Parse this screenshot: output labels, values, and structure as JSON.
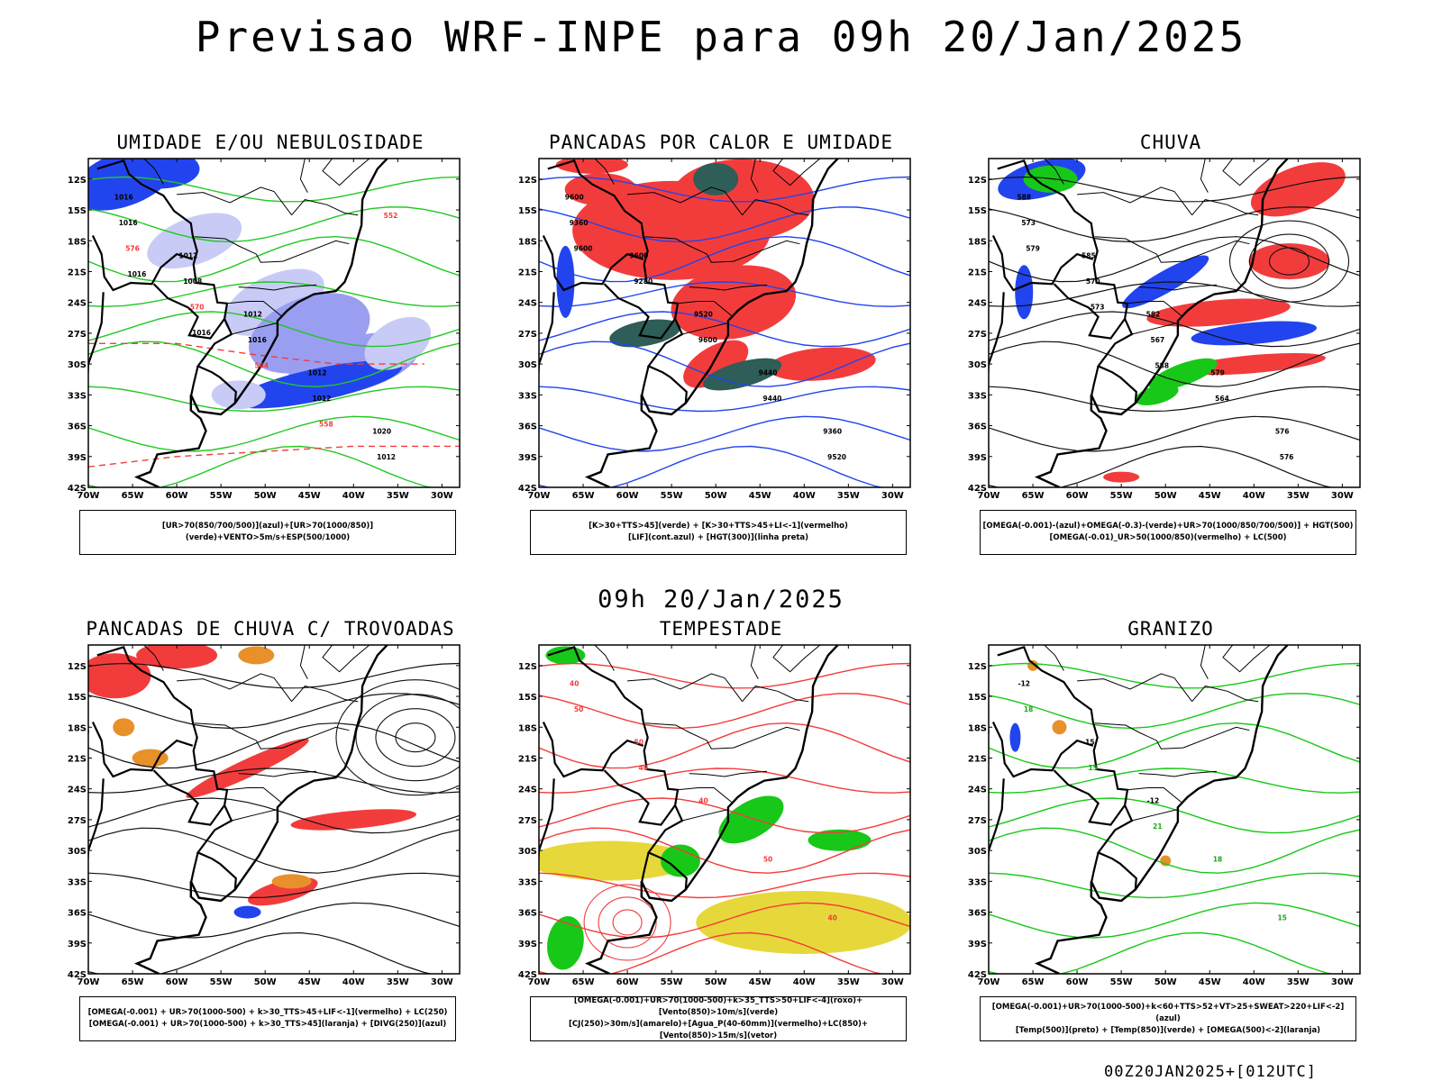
{
  "header": {
    "title": "Previsao WRF-INPE  para 09h 20/Jan/2025",
    "mid_date": "09h 20/Jan/2025",
    "footer_stamp": "00Z20JAN2025+[012UTC]"
  },
  "axes": {
    "lat_labels": [
      "12S",
      "15S",
      "18S",
      "21S",
      "24S",
      "27S",
      "30S",
      "33S",
      "36S",
      "39S",
      "42S"
    ],
    "lon_labels": [
      "70W",
      "65W",
      "60W",
      "55W",
      "50W",
      "45W",
      "40W",
      "35W",
      "30W"
    ]
  },
  "colors": {
    "blue": "#2244ee",
    "light_blue": "#9a9ef0",
    "pale_blue": "#c8cbf5",
    "green": "#18c818",
    "red": "#f23c3c",
    "orange": "#e8902a",
    "yellow": "#e6d83a",
    "dark_teal": "#2f5d58"
  },
  "panels": [
    {
      "id": "umidade",
      "title": "UMIDADE E/OU NEBULOSIDADE",
      "legend": [
        "[UR>70(850/700/500)](azul)+[UR>70(1000/850)](verde)+VENTO>5m/s+ESP(500/1000)"
      ],
      "contour_labels": [
        "1016",
        "1012",
        "1012",
        "1012",
        "1020",
        "1016",
        "1008",
        "1016",
        "1012",
        "1012",
        "576",
        "570",
        "564",
        "558",
        "552",
        "1016",
        "1016"
      ]
    },
    {
      "id": "pancadas-calor",
      "title": "PANCADAS POR CALOR E UMIDADE",
      "legend": [
        "[K>30+TTS>45](verde) + [K>30+TTS>45+LI<-1](vermelho)",
        "[LIF](cont.azul) + [HGT(300)](linha preta)"
      ],
      "contour_labels": [
        "9600",
        "9600",
        "9520",
        "9440",
        "9360",
        "9360",
        "9280",
        "9600",
        "9440",
        "9520",
        "9600"
      ]
    },
    {
      "id": "chuva",
      "title": "CHUVA",
      "legend": [
        "[OMEGA(-0.001)-(azul)+OMEGA(-0.3)-(verde)+UR>70(1000/850/700/500)] + HGT(500)",
        "[OMEGA(-0.01)_UR>50(1000/850)(vermelho) + LC(500)"
      ],
      "contour_labels": [
        "588",
        "585",
        "582",
        "579",
        "576",
        "573",
        "570",
        "567",
        "564",
        "576",
        "579",
        "573",
        "588"
      ]
    },
    {
      "id": "pancadas-trovoadas",
      "title": "PANCADAS DE CHUVA C/ TROVOADAS",
      "legend": [
        "[OMEGA(-0.001) + UR>70(1000-500) + k>30_TTS>45+LIF<-1](vermelho) + LC(250)",
        "[OMEGA(-0.001) + UR>70(1000-500) + k>30_TTS>45](laranja) + [DIVG(250)](azul)"
      ],
      "contour_labels": []
    },
    {
      "id": "tempestade",
      "title": "TEMPESTADE",
      "legend": [
        "[OMEGA(-0.001)+UR>70(1000-500)+k>35_TTS>50+LIF<-4](roxo)+[Vento(850)>10m/s](verde)",
        "[CJ(250)>30m/s](amarelo)+[Agua_P(40-60mm)](vermelho)+LC(850)+[Vento(850)>15m/s](vetor)"
      ],
      "contour_labels": [
        "40",
        "50",
        "40",
        "50",
        "40",
        "50",
        "40"
      ]
    },
    {
      "id": "granizo",
      "title": "GRANIZO",
      "legend": [
        "[OMEGA(-0.001)+UR>70(1000-500)+k<60+TTS>52+VT>25+SWEAT>220+LIF<-2](azul)",
        "[Temp(500)](preto) + [Temp(850)](verde) + [OMEGA(500)<-2](laranja)"
      ],
      "contour_labels": [
        "-12",
        "-15",
        "-12",
        "18",
        "15",
        "18",
        "15",
        "21"
      ]
    }
  ]
}
